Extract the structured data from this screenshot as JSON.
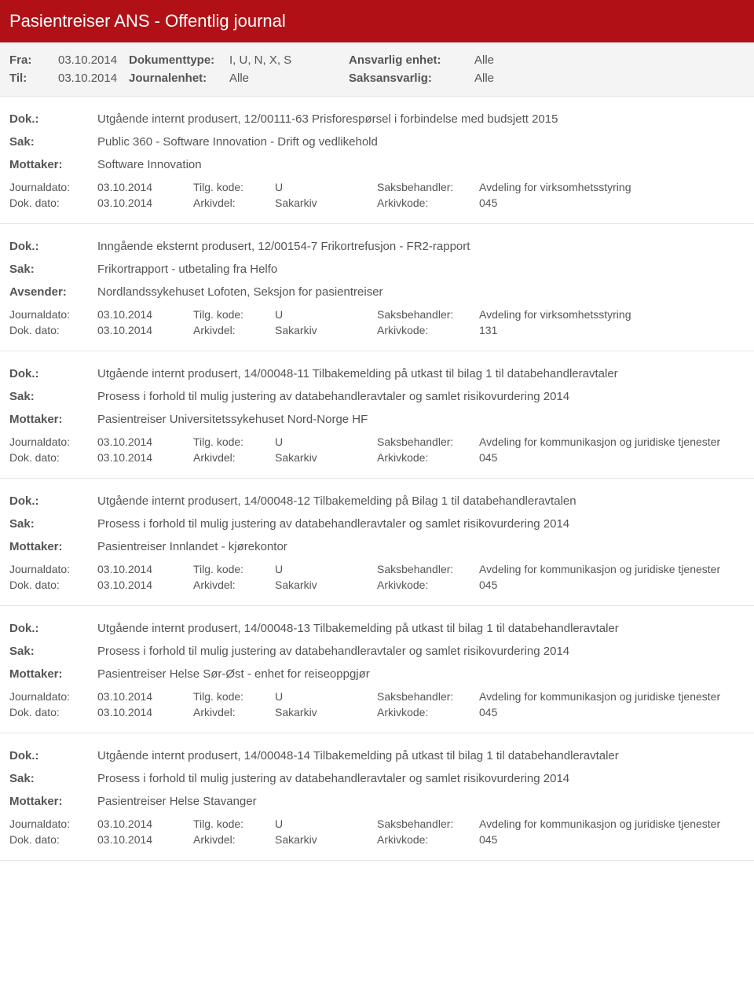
{
  "header": {
    "title": "Pasientreiser ANS - Offentlig journal"
  },
  "filters": {
    "fra_label": "Fra:",
    "fra_value": "03.10.2014",
    "til_label": "Til:",
    "til_value": "03.10.2014",
    "doktype_label": "Dokumenttype:",
    "doktype_value": "I, U, N, X, S",
    "journalenhet_label": "Journalenhet:",
    "journalenhet_value": "Alle",
    "ansvarlig_label": "Ansvarlig enhet:",
    "ansvarlig_value": "Alle",
    "saksansvarlig_label": "Saksansvarlig:",
    "saksansvarlig_value": "Alle"
  },
  "labels": {
    "dok": "Dok.:",
    "sak": "Sak:",
    "mottaker": "Mottaker:",
    "avsender": "Avsender:",
    "journaldato": "Journaldato:",
    "dokdato": "Dok. dato:",
    "tilgkode": "Tilg. kode:",
    "arkivdel": "Arkivdel:",
    "saksbehandler": "Saksbehandler:",
    "arkivkode": "Arkivkode:"
  },
  "entries": [
    {
      "dok": "Utgående internt produsert, 12/00111-63 Prisforespørsel i forbindelse med budsjett 2015",
      "sak": "Public 360 - Software Innovation - Drift og vedlikehold",
      "party_label": "Mottaker:",
      "party": "Software Innovation",
      "journaldato": "03.10.2014",
      "tilgkode": "U",
      "saksbehandler": "Avdeling for virksomhetsstyring",
      "dokdato": "03.10.2014",
      "arkivdel": "Sakarkiv",
      "arkivkode": "045"
    },
    {
      "dok": "Inngående eksternt produsert, 12/00154-7 Frikortrefusjon - FR2-rapport",
      "sak": "Frikortrapport - utbetaling fra Helfo",
      "party_label": "Avsender:",
      "party": "Nordlandssykehuset Lofoten, Seksjon for pasientreiser",
      "journaldato": "03.10.2014",
      "tilgkode": "U",
      "saksbehandler": "Avdeling for virksomhetsstyring",
      "dokdato": "03.10.2014",
      "arkivdel": "Sakarkiv",
      "arkivkode": "131"
    },
    {
      "dok": "Utgående internt produsert, 14/00048-11 Tilbakemelding på utkast til bilag 1 til databehandleravtaler",
      "sak": "Prosess i forhold til mulig justering av databehandleravtaler og samlet risikovurdering 2014",
      "party_label": "Mottaker:",
      "party": "Pasientreiser Universitetssykehuset Nord-Norge HF",
      "journaldato": "03.10.2014",
      "tilgkode": "U",
      "saksbehandler": "Avdeling for kommunikasjon og juridiske tjenester",
      "dokdato": "03.10.2014",
      "arkivdel": "Sakarkiv",
      "arkivkode": "045"
    },
    {
      "dok": "Utgående internt produsert, 14/00048-12 Tilbakemelding på Bilag 1 til databehandleravtalen",
      "sak": "Prosess i forhold til mulig justering av databehandleravtaler og samlet risikovurdering 2014",
      "party_label": "Mottaker:",
      "party": "Pasientreiser Innlandet - kjørekontor",
      "journaldato": "03.10.2014",
      "tilgkode": "U",
      "saksbehandler": "Avdeling for kommunikasjon og juridiske tjenester",
      "dokdato": "03.10.2014",
      "arkivdel": "Sakarkiv",
      "arkivkode": "045"
    },
    {
      "dok": "Utgående internt produsert, 14/00048-13 Tilbakemelding på utkast til bilag 1 til databehandleravtaler",
      "sak": "Prosess i forhold til mulig justering av databehandleravtaler og samlet risikovurdering 2014",
      "party_label": "Mottaker:",
      "party": "Pasientreiser Helse Sør-Øst - enhet for reiseoppgjør",
      "journaldato": "03.10.2014",
      "tilgkode": "U",
      "saksbehandler": "Avdeling for kommunikasjon og juridiske tjenester",
      "dokdato": "03.10.2014",
      "arkivdel": "Sakarkiv",
      "arkivkode": "045"
    },
    {
      "dok": "Utgående internt produsert, 14/00048-14 Tilbakemelding på utkast til bilag 1 til databehandleravtaler",
      "sak": "Prosess i forhold til mulig justering av databehandleravtaler og samlet risikovurdering 2014",
      "party_label": "Mottaker:",
      "party": "Pasientreiser Helse Stavanger",
      "journaldato": "03.10.2014",
      "tilgkode": "U",
      "saksbehandler": "Avdeling for kommunikasjon og juridiske tjenester",
      "dokdato": "03.10.2014",
      "arkivdel": "Sakarkiv",
      "arkivkode": "045"
    }
  ]
}
